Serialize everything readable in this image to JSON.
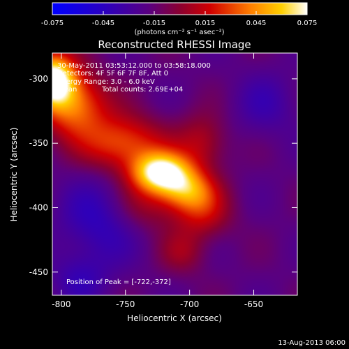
{
  "chart_data": {
    "type": "heatmap",
    "title": "Reconstructed RHESSI Image",
    "xlabel": "Heliocentric X (arcsec)",
    "ylabel": "Heliocentric Y (arcsec)",
    "xlim": [
      -807,
      -616
    ],
    "ylim": [
      -468,
      -280
    ],
    "x_ticks": [
      -800,
      -750,
      -700,
      -650
    ],
    "y_ticks": [
      -450,
      -400,
      -350,
      -300
    ],
    "colorbar": {
      "min": -0.075,
      "max": 0.075,
      "ticks": [
        "-0.075",
        "-0.045",
        "-0.015",
        "0.015",
        "0.045",
        "0.075"
      ],
      "unit_text": "(photons cm⁻² s⁻¹ asec⁻²)"
    },
    "peak": {
      "x": -722,
      "y": -372
    },
    "annotations": {
      "time_range": "30-May-2011 03:53:12.000 to 03:58:18.000",
      "detectors": "Detectors: 4F 5F 6F 7F 8F, Att 0",
      "energy": "Energy Range: 3.0 - 6.0 keV",
      "method": "Clean",
      "counts": "Total counts: 2.69E+04",
      "peak_label": "Position of Peak = [-722,-372]"
    },
    "footer_date": "13-Aug-2013 06:00",
    "blobs": [
      {
        "x": -722,
        "y": -373,
        "amp": 0.095,
        "sx": 16,
        "sy": 11
      },
      {
        "x": -702,
        "y": -387,
        "amp": 0.052,
        "sx": 15,
        "sy": 11
      },
      {
        "x": -752,
        "y": -350,
        "amp": 0.05,
        "sx": 22,
        "sy": 15
      },
      {
        "x": -790,
        "y": -320,
        "amp": 0.058,
        "sx": 18,
        "sy": 18
      },
      {
        "x": -807,
        "y": -300,
        "amp": 0.095,
        "sx": 12,
        "sy": 14
      },
      {
        "x": -690,
        "y": -405,
        "amp": 0.03,
        "sx": 16,
        "sy": 14
      },
      {
        "x": -735,
        "y": -400,
        "amp": 0.022,
        "sx": 18,
        "sy": 14
      },
      {
        "x": -690,
        "y": -350,
        "amp": 0.028,
        "sx": 14,
        "sy": 16
      },
      {
        "x": -705,
        "y": -435,
        "amp": 0.02,
        "sx": 13,
        "sy": 12
      },
      {
        "x": -770,
        "y": -410,
        "amp": -0.025,
        "sx": 22,
        "sy": 22
      },
      {
        "x": -640,
        "y": -320,
        "amp": -0.015,
        "sx": 18,
        "sy": 18
      },
      {
        "x": -785,
        "y": -455,
        "amp": -0.018,
        "sx": 16,
        "sy": 14
      }
    ],
    "background_level": -0.018
  }
}
